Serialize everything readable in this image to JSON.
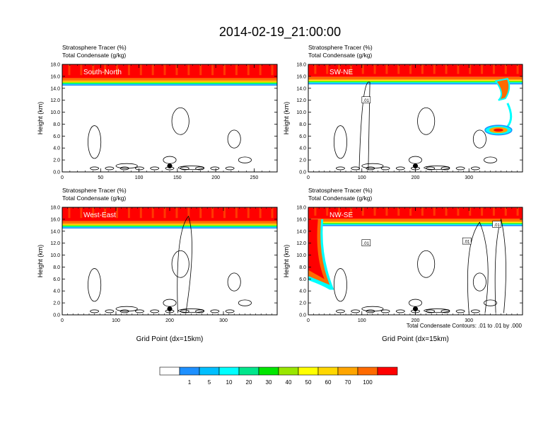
{
  "title": "2014-02-19_21:00:00",
  "palette": [
    "#ffffff",
    "#1e90ff",
    "#00bfff",
    "#00ffff",
    "#00e68c",
    "#00e600",
    "#99e600",
    "#ffff00",
    "#ffd700",
    "#ffa500",
    "#ff6a00",
    "#ff0000"
  ],
  "legend": {
    "labels": [
      "1",
      "5",
      "10",
      "20",
      "30",
      "40",
      "50",
      "60",
      "70",
      "100"
    ]
  },
  "contour_note": "Total Condensate Contours: .01 to .01 by .000",
  "chart_data": [
    {
      "type": "heatmap",
      "cross_section": "South-North",
      "title_line1": "Stratosphere Tracer   (%)",
      "title_line2": "Total Condensate   (g/kg)",
      "ylabel": "Height (km)",
      "xlabel": "",
      "xlim": [
        0,
        280
      ],
      "ylim": [
        0,
        18
      ],
      "xticks": [
        "0",
        "50",
        "100",
        "150",
        "200",
        "250"
      ],
      "xtick_values": [
        0,
        50,
        100,
        150,
        200,
        250
      ],
      "yticks": [
        "0.0",
        "2.0",
        "4.0",
        "6.0",
        "8.0",
        "10.0",
        "12.0",
        "14.0",
        "16.0",
        "18.0"
      ],
      "tracer_base_km": 14.6,
      "marker_x": 140,
      "marker_y": 1.0,
      "contour_labels": []
    },
    {
      "type": "heatmap",
      "cross_section": "SW-NE",
      "title_line1": "Stratosphere Tracer   (%)",
      "title_line2": "Total Condensate   (g/kg)",
      "ylabel": "Height (km)",
      "xlabel": "",
      "xlim": [
        0,
        400
      ],
      "ylim": [
        0,
        18
      ],
      "xticks": [
        "0",
        "100",
        "200",
        "300"
      ],
      "xtick_values": [
        0,
        100,
        200,
        300
      ],
      "yticks": [
        "0.0",
        "2.0",
        "4.0",
        "6.0",
        "8.0",
        "10.0",
        "12.0",
        "14.0",
        "16.0",
        "18.0"
      ],
      "tracer_base_km": 14.8,
      "marker_x": 200,
      "marker_y": 1.0,
      "contour_labels": [
        ".01"
      ]
    },
    {
      "type": "heatmap",
      "cross_section": "West-East",
      "title_line1": "Stratosphere Tracer   (%)",
      "title_line2": "Total Condensate   (g/kg)",
      "ylabel": "Height (km)",
      "xlabel": "Grid Point (dx=15km)",
      "xlim": [
        0,
        400
      ],
      "ylim": [
        0,
        18
      ],
      "xticks": [
        "0",
        "100",
        "200",
        "300"
      ],
      "xtick_values": [
        0,
        100,
        200,
        300
      ],
      "yticks": [
        "0.0",
        "2.0",
        "4.0",
        "6.0",
        "8.0",
        "10.0",
        "12.0",
        "14.0",
        "16.0",
        "18.0"
      ],
      "tracer_base_km": 14.6,
      "marker_x": 200,
      "marker_y": 1.0,
      "contour_labels": []
    },
    {
      "type": "heatmap",
      "cross_section": "NW-SE",
      "title_line1": "Stratosphere Tracer   (%)",
      "title_line2": "Total Condensate   (g/kg)",
      "ylabel": "Height (km)",
      "xlabel": "Grid Point (dx=15km)",
      "xlim": [
        0,
        400
      ],
      "ylim": [
        0,
        18
      ],
      "xticks": [
        "0",
        "100",
        "200",
        "300"
      ],
      "xtick_values": [
        0,
        100,
        200,
        300
      ],
      "yticks": [
        "0.0",
        "2.0",
        "4.0",
        "6.0",
        "8.0",
        "10.0",
        "12.0",
        "14.0",
        "16.0",
        "18.0"
      ],
      "tracer_base_km": 15.0,
      "marker_x": 200,
      "marker_y": 1.0,
      "contour_labels": [
        ".01",
        ".01",
        ".01"
      ]
    }
  ]
}
